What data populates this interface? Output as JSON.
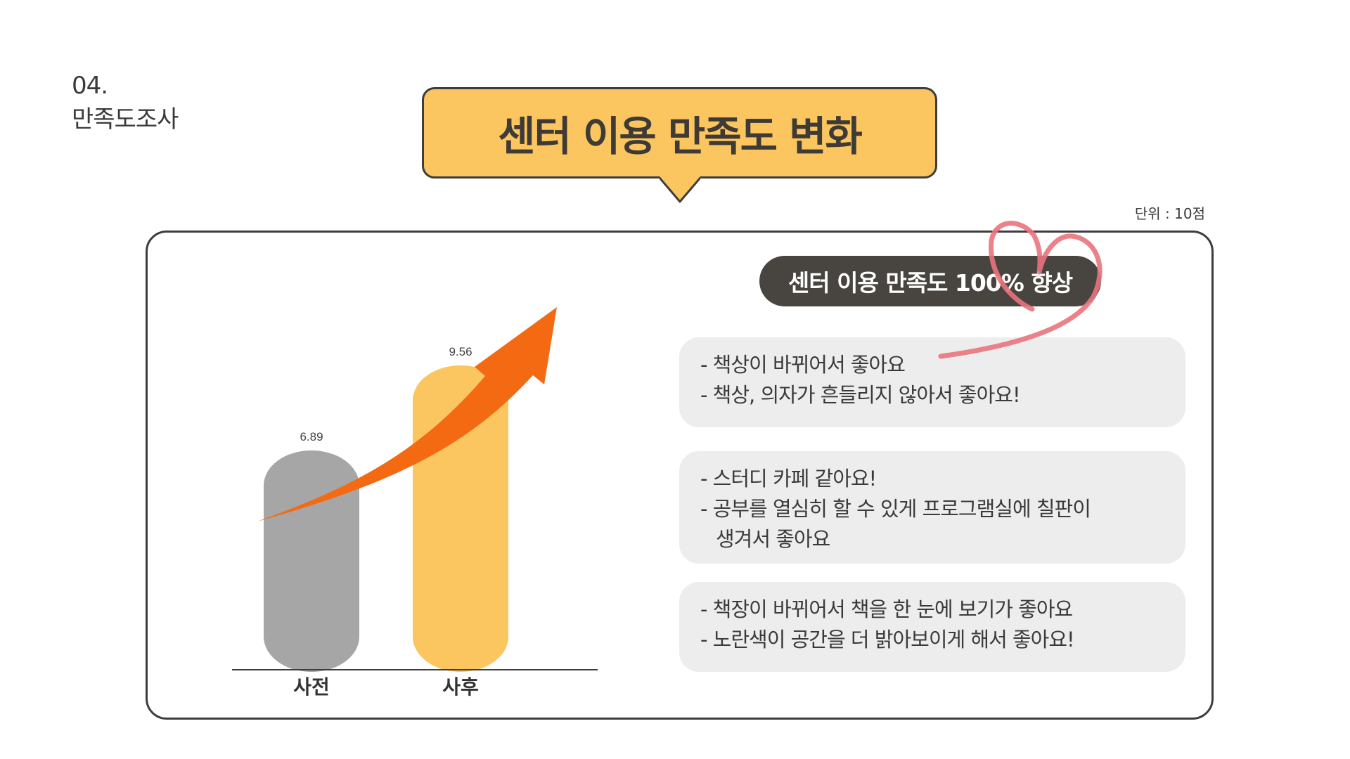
{
  "section": {
    "number": "04.",
    "title": "만족도조사"
  },
  "header": {
    "title": "센터 이용 만족도 변화"
  },
  "unit_label": "단위 : 10점",
  "highlight": {
    "label": "센터 이용 만족도 100% 향상"
  },
  "comments": [
    {
      "lines": [
        "- 책상이 바뀌어서 좋아요",
        "- 책상, 의자가 흔들리지 않아서 좋아요!"
      ]
    },
    {
      "lines": [
        "- 스터디 카페 같아요!",
        "- 공부를 열심히 할 수 있게 프로그램실에 칠판이",
        "생겨서 좋아요"
      ]
    },
    {
      "lines": [
        "- 책장이 바뀌어서 책을 한 눈에 보기가 좋아요",
        "- 노란색이 공간을 더 밝아보이게 해서 좋아요!"
      ]
    }
  ],
  "colors": {
    "accent": "#fbc55f",
    "before_bar": "#a6a6a6",
    "arrow": "#f46a12",
    "dark": "#48443f",
    "heart": "#e9737c"
  },
  "icons": {
    "arrow": "upward-trend-arrow-icon",
    "heart": "heart-doodle-icon"
  },
  "chart_data": {
    "type": "bar",
    "categories": [
      "사전",
      "사후"
    ],
    "values": [
      6.89,
      9.56
    ],
    "value_labels": [
      "6.89",
      "9.56"
    ],
    "ylim": [
      0,
      10
    ],
    "grid": false,
    "legend": "none"
  }
}
